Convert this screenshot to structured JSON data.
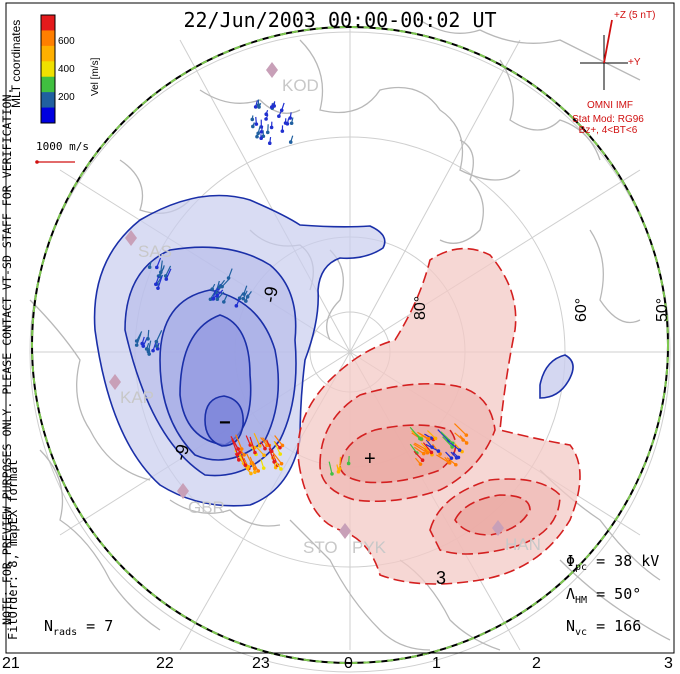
{
  "title": "22/Jun/2003 00:00-00:02 UT",
  "coordinates_label": "MLT coordinates",
  "colorbar": {
    "label": "Vel [m/s]",
    "ticks": [
      "600",
      "400",
      "200"
    ],
    "colors": [
      "#e41a1c",
      "#ff7f00",
      "#ffb000",
      "#f0e000",
      "#40c040",
      "#2060a0",
      "#0000e0"
    ]
  },
  "scale_vector": "1000 m/s",
  "imf": {
    "z_label": "+Z (5 nT)",
    "y_label": "+Y",
    "source": "OMNI IMF",
    "stat_mod": "Stat Mod: RG96",
    "bin": "Bz+, 4<BT<6"
  },
  "vertical_notes": [
    "NOTE: FOR PREVIEW PURPOSES ONLY. PLEASE CONTACT VT-SD STAFF FOR VERIFICATION.",
    "FitOrder: 8, mapEX format"
  ],
  "latitude_labels": [
    "80°",
    "60°",
    "50°"
  ],
  "stations": [
    "KOD",
    "SAS",
    "KAP",
    "GBR",
    "STO",
    "PYK",
    "HAN"
  ],
  "contour_labels": [
    "-9",
    "-9",
    "3"
  ],
  "min_marker": "−",
  "max_marker": "+",
  "stats": {
    "phi_pc_symbol": "Φ",
    "phi_pc_sub": "pc",
    "phi_pc_value": "= 38 kV",
    "lambda_symbol": "Λ",
    "lambda_sub": "HM",
    "lambda_value": "= 50°",
    "nvc_symbol": "N",
    "nvc_sub": "vc",
    "nvc_value": "= 166",
    "nrads_symbol": "N",
    "nrads_sub": "rads",
    "nrads_value": "= 7"
  },
  "mlt_ticks": [
    "21",
    "22",
    "23",
    "0",
    "1",
    "2",
    "3"
  ],
  "colors": {
    "negative_cell": "#1a2fa8",
    "positive_cell": "#d42020",
    "negative_fill": "#c9cdee",
    "positive_fill": "#f3c9c6",
    "coast": "#b8b8b8",
    "grid": "#cfcfcf",
    "boundary_green": "#7ec850"
  }
}
